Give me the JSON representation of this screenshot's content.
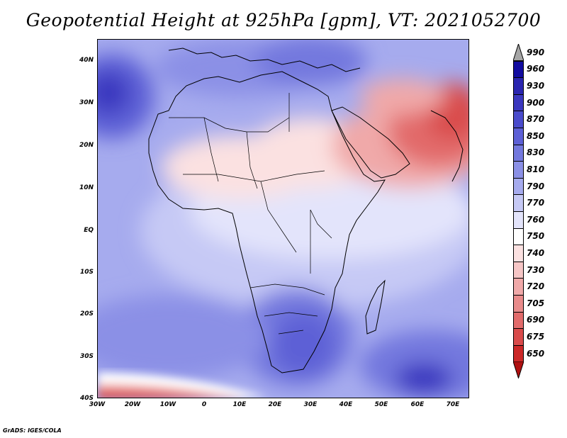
{
  "title": "Geopotential Height at 925hPa [gpm], VT: 2021052700",
  "credit": "GrADS: IGES/COLA",
  "map": {
    "lat_labels": [
      "40N",
      "30N",
      "20N",
      "10N",
      "EQ",
      "10S",
      "20S",
      "30S",
      "40S"
    ],
    "lon_labels": [
      "30W",
      "20W",
      "10W",
      "0",
      "10E",
      "20E",
      "30E",
      "40E",
      "50E",
      "60E",
      "70E"
    ]
  },
  "colorbar": {
    "levels": [
      {
        "label": "990",
        "color": "#a6a6a6"
      },
      {
        "label": "960",
        "color": "#120ca0"
      },
      {
        "label": "930",
        "color": "#2a25b0"
      },
      {
        "label": "900",
        "color": "#3a37bf"
      },
      {
        "label": "870",
        "color": "#4a4bcc"
      },
      {
        "label": "850",
        "color": "#5d60d6"
      },
      {
        "label": "830",
        "color": "#7378de"
      },
      {
        "label": "810",
        "color": "#8b90e6"
      },
      {
        "label": "790",
        "color": "#a6abee"
      },
      {
        "label": "770",
        "color": "#c6c9f5"
      },
      {
        "label": "760",
        "color": "#e3e4fb"
      },
      {
        "label": "750",
        "color": "#ffffff"
      },
      {
        "label": "740",
        "color": "#fbe1e1"
      },
      {
        "label": "730",
        "color": "#f6c6c6"
      },
      {
        "label": "720",
        "color": "#f0a9a9"
      },
      {
        "label": "705",
        "color": "#e98b8b"
      },
      {
        "label": "690",
        "color": "#e26b6b"
      },
      {
        "label": "675",
        "color": "#d94b4b"
      },
      {
        "label": "650",
        "color": "#cc2828"
      },
      {
        "label": "",
        "color": "#b01010"
      }
    ]
  }
}
